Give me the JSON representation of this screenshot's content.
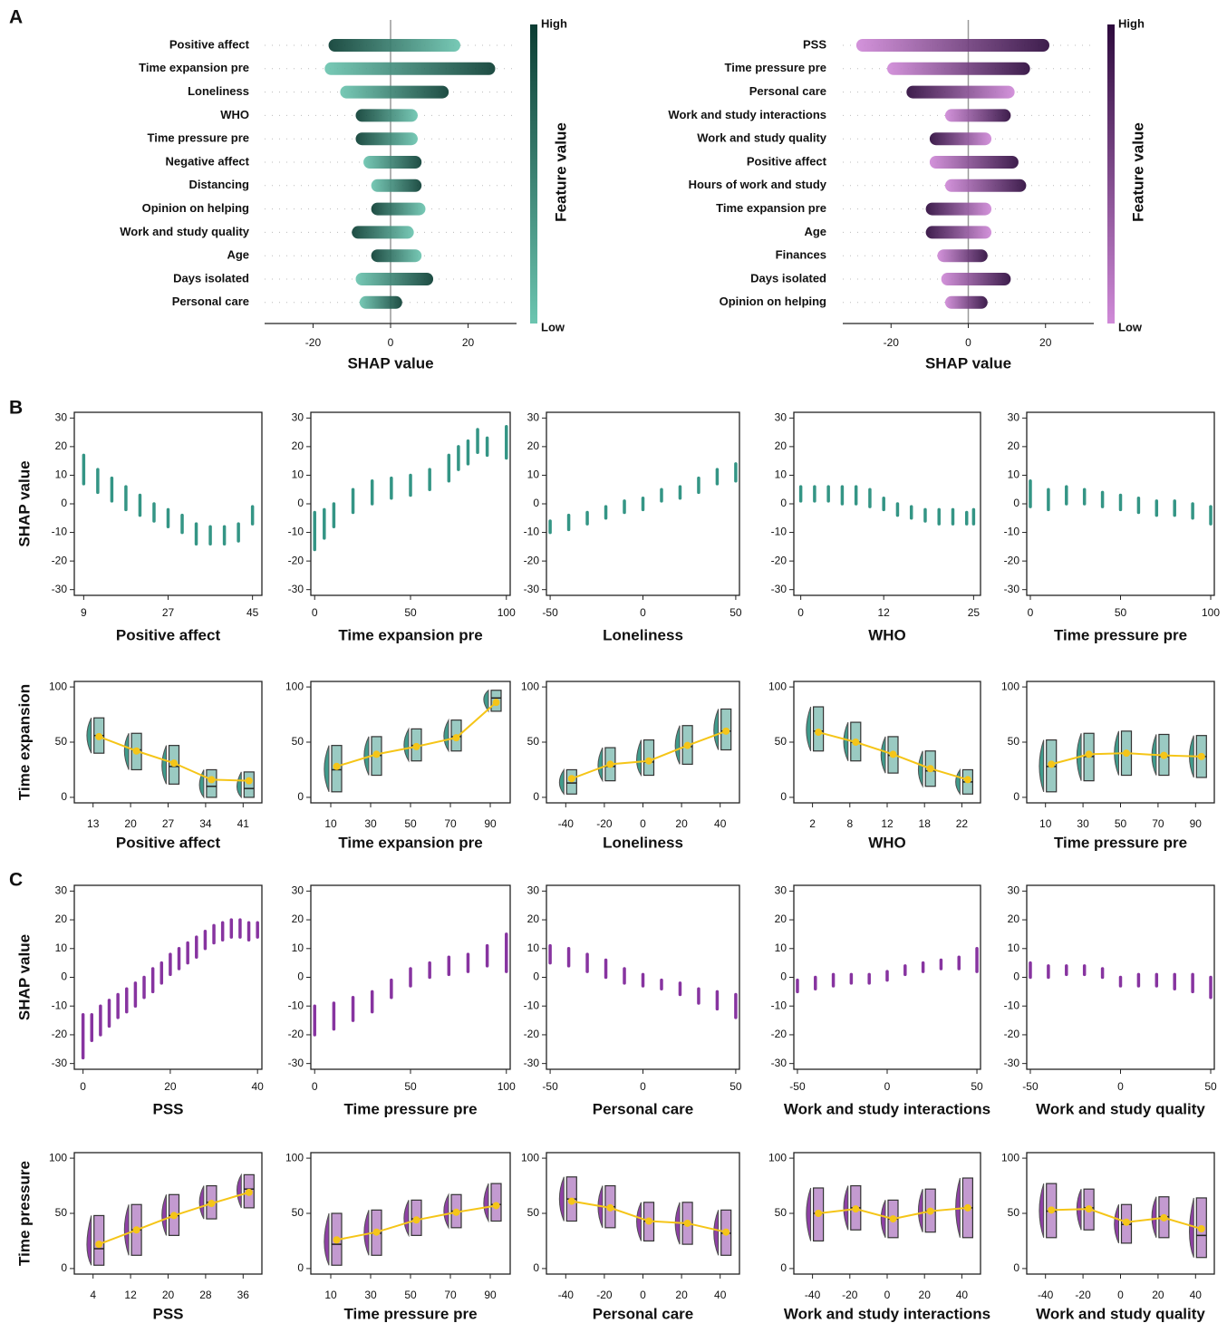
{
  "panel_labels": [
    "A",
    "B",
    "C"
  ],
  "chart_data": [
    {
      "type": "beeswarm",
      "xlabel": "SHAP value",
      "colorbar_label": "Feature value",
      "colorbar_high": "High",
      "colorbar_low": "Low",
      "low_color": "#6cc5b0",
      "high_color": "#0b3d33",
      "features": [
        "Positive affect",
        "Time expansion pre",
        "Loneliness",
        "WHO",
        "Time pressure pre",
        "Negative affect",
        "Distancing",
        "Opinion on helping",
        "Work and study quality",
        "Age",
        "Days isolated",
        "Personal care"
      ],
      "min": [
        -16,
        -17,
        -13,
        -9,
        -9,
        -7,
        -5,
        -5,
        -10,
        -5,
        -9,
        -8
      ],
      "max": [
        18,
        27,
        15,
        7,
        7,
        8,
        8,
        9,
        6,
        8,
        11,
        3
      ],
      "high_end": [
        "left",
        "right",
        "right",
        "left",
        "left",
        "right",
        "right",
        "left",
        "left",
        "left",
        "right",
        "right"
      ],
      "xlim": [
        -32.5,
        32.5
      ],
      "xticks": [
        -20,
        0,
        20
      ]
    },
    {
      "type": "beeswarm",
      "xlabel": "SHAP value",
      "colorbar_label": "Feature value",
      "colorbar_high": "High",
      "colorbar_low": "Low",
      "low_color": "#d08ad8",
      "high_color": "#2d0a3d",
      "features": [
        "PSS",
        "Time pressure pre",
        "Personal care",
        "Work and study interactions",
        "Work and study quality",
        "Positive affect",
        "Hours of work and study",
        "Time expansion pre",
        "Age",
        "Finances",
        "Days isolated",
        "Opinion on helping"
      ],
      "min": [
        -29,
        -21,
        -16,
        -6,
        -10,
        -10,
        -6,
        -11,
        -11,
        -8,
        -7,
        -6
      ],
      "max": [
        21,
        16,
        12,
        11,
        6,
        13,
        15,
        6,
        6,
        5,
        11,
        5
      ],
      "high_end": [
        "right",
        "right",
        "left",
        "right",
        "left",
        "right",
        "right",
        "left",
        "left",
        "right",
        "right",
        "right"
      ],
      "xlim": [
        -32.5,
        32.5
      ],
      "xticks": [
        -20,
        0,
        20
      ]
    },
    {
      "type": "strip",
      "xlabel": "Positive affect",
      "ylabel": "SHAP value",
      "color": "#1f8a78",
      "x": [
        9,
        12,
        15,
        18,
        21,
        24,
        27,
        30,
        33,
        36,
        39,
        42,
        45
      ],
      "low": [
        7,
        4,
        1,
        -2,
        -4,
        -6,
        -8,
        -10,
        -14,
        -14,
        -14,
        -13,
        -7
      ],
      "high": [
        17,
        12,
        9,
        6,
        3,
        0,
        -2,
        -4,
        -7,
        -8,
        -8,
        -7,
        -1
      ],
      "xlim": [
        7,
        47
      ],
      "xticks": [
        9,
        27,
        45
      ],
      "ylim": [
        -32,
        32
      ],
      "yticks": [
        -30,
        -20,
        -10,
        0,
        10,
        20,
        30
      ]
    },
    {
      "type": "strip",
      "xlabel": "Time expansion pre",
      "color": "#1f8a78",
      "x": [
        0,
        5,
        10,
        20,
        30,
        40,
        50,
        60,
        70,
        75,
        80,
        85,
        90,
        100
      ],
      "low": [
        -16,
        -12,
        -8,
        -3,
        0,
        2,
        3,
        5,
        8,
        12,
        14,
        18,
        17,
        16
      ],
      "high": [
        -3,
        -2,
        0,
        5,
        8,
        9,
        10,
        12,
        17,
        20,
        22,
        26,
        23,
        27
      ],
      "xlim": [
        -2,
        102
      ],
      "xticks": [
        0,
        50,
        100
      ],
      "ylim": [
        -32,
        32
      ],
      "yticks": [
        -30,
        -20,
        -10,
        0,
        10,
        20,
        30
      ]
    },
    {
      "type": "strip",
      "xlabel": "Loneliness",
      "color": "#1f8a78",
      "x": [
        -50,
        -40,
        -30,
        -20,
        -10,
        0,
        10,
        20,
        30,
        40,
        50
      ],
      "low": [
        -10,
        -9,
        -7,
        -5,
        -3,
        -2,
        1,
        2,
        4,
        7,
        8
      ],
      "high": [
        -6,
        -4,
        -3,
        -1,
        1,
        2,
        5,
        6,
        9,
        12,
        14
      ],
      "xlim": [
        -52,
        52
      ],
      "xticks": [
        -50,
        0,
        50
      ],
      "ylim": [
        -32,
        32
      ],
      "yticks": [
        -30,
        -20,
        -10,
        0,
        10,
        20,
        30
      ]
    },
    {
      "type": "strip",
      "xlabel": "WHO",
      "color": "#1f8a78",
      "x": [
        0,
        2,
        4,
        6,
        8,
        10,
        12,
        14,
        16,
        18,
        20,
        22,
        24,
        25
      ],
      "low": [
        1,
        1,
        1,
        0,
        0,
        -1,
        -2,
        -4,
        -5,
        -6,
        -7,
        -7,
        -7,
        -7
      ],
      "high": [
        6,
        6,
        6,
        6,
        6,
        5,
        2,
        0,
        -1,
        -2,
        -2,
        -2,
        -3,
        -2
      ],
      "xlim": [
        -1,
        26
      ],
      "xticks": [
        0,
        12,
        25
      ],
      "ylim": [
        -32,
        32
      ],
      "yticks": [
        -30,
        -20,
        -10,
        0,
        10,
        20,
        30
      ]
    },
    {
      "type": "strip",
      "xlabel": "Time pressure pre",
      "color": "#1f8a78",
      "x": [
        0,
        10,
        20,
        30,
        40,
        50,
        60,
        70,
        80,
        90,
        100
      ],
      "low": [
        -1,
        -2,
        0,
        0,
        -1,
        -2,
        -3,
        -4,
        -4,
        -5,
        -7
      ],
      "high": [
        8,
        5,
        6,
        5,
        4,
        3,
        2,
        1,
        1,
        0,
        -1
      ],
      "xlim": [
        -2,
        102
      ],
      "xticks": [
        0,
        50,
        100
      ],
      "ylim": [
        -32,
        32
      ],
      "yticks": [
        -30,
        -20,
        -10,
        0,
        10,
        20,
        30
      ]
    },
    {
      "type": "box",
      "xlabel": "Positive affect",
      "ylabel": "Time expansion",
      "color": "#1f8a78",
      "mean_color": "#f5c518",
      "categories": [
        "13",
        "20",
        "27",
        "34",
        "41"
      ],
      "q1": [
        40,
        25,
        12,
        0,
        0
      ],
      "median": [
        56,
        43,
        28,
        10,
        8
      ],
      "q3": [
        72,
        58,
        47,
        25,
        23
      ],
      "means": [
        55,
        42,
        31,
        16,
        15
      ],
      "ylim": [
        -5,
        105
      ],
      "yticks": [
        0,
        50,
        100
      ]
    },
    {
      "type": "box",
      "xlabel": "Time expansion pre",
      "color": "#1f8a78",
      "mean_color": "#f5c518",
      "categories": [
        "10",
        "30",
        "50",
        "70",
        "90"
      ],
      "q1": [
        5,
        20,
        33,
        42,
        78
      ],
      "median": [
        25,
        38,
        47,
        55,
        90
      ],
      "q3": [
        47,
        55,
        62,
        70,
        97
      ],
      "means": [
        28,
        39,
        46,
        54,
        86
      ],
      "ylim": [
        -5,
        105
      ],
      "yticks": [
        0,
        50,
        100
      ]
    },
    {
      "type": "box",
      "xlabel": "Loneliness",
      "color": "#1f8a78",
      "mean_color": "#f5c518",
      "categories": [
        "-40",
        "-20",
        "0",
        "20",
        "40"
      ],
      "q1": [
        3,
        15,
        20,
        30,
        43
      ],
      "median": [
        13,
        28,
        32,
        46,
        60
      ],
      "q3": [
        25,
        45,
        52,
        65,
        80
      ],
      "means": [
        17,
        30,
        33,
        47,
        60
      ],
      "ylim": [
        -5,
        105
      ],
      "yticks": [
        0,
        50,
        100
      ]
    },
    {
      "type": "box",
      "xlabel": "WHO",
      "color": "#1f8a78",
      "mean_color": "#f5c518",
      "categories": [
        "2",
        "8",
        "12",
        "18",
        "22"
      ],
      "q1": [
        42,
        33,
        22,
        10,
        3
      ],
      "median": [
        60,
        50,
        38,
        24,
        14
      ],
      "q3": [
        82,
        68,
        55,
        42,
        25
      ],
      "means": [
        59,
        50,
        39,
        26,
        16
      ],
      "ylim": [
        -5,
        105
      ],
      "yticks": [
        0,
        50,
        100
      ]
    },
    {
      "type": "box",
      "xlabel": "Time pressure pre",
      "color": "#1f8a78",
      "mean_color": "#f5c518",
      "categories": [
        "10",
        "30",
        "50",
        "70",
        "90"
      ],
      "q1": [
        5,
        15,
        20,
        20,
        18
      ],
      "median": [
        28,
        37,
        40,
        37,
        37
      ],
      "q3": [
        52,
        58,
        60,
        57,
        56
      ],
      "means": [
        30,
        39,
        40,
        38,
        37
      ],
      "ylim": [
        -5,
        105
      ],
      "yticks": [
        0,
        50,
        100
      ]
    },
    {
      "type": "strip",
      "xlabel": "PSS",
      "ylabel": "SHAP value",
      "color": "#7b1f96",
      "x": [
        0,
        2,
        4,
        6,
        8,
        10,
        12,
        14,
        16,
        18,
        20,
        22,
        24,
        26,
        28,
        30,
        32,
        34,
        36,
        38,
        40
      ],
      "low": [
        -28,
        -22,
        -20,
        -17,
        -14,
        -12,
        -10,
        -7,
        -5,
        -2,
        1,
        3,
        5,
        7,
        10,
        12,
        13,
        14,
        14,
        13,
        14
      ],
      "high": [
        -13,
        -13,
        -10,
        -8,
        -6,
        -4,
        -2,
        0,
        3,
        5,
        8,
        10,
        12,
        14,
        16,
        18,
        19,
        20,
        20,
        19,
        19
      ],
      "xlim": [
        -2,
        41
      ],
      "xticks": [
        0,
        20,
        40
      ],
      "ylim": [
        -32,
        32
      ],
      "yticks": [
        -30,
        -20,
        -10,
        0,
        10,
        20,
        30
      ]
    },
    {
      "type": "strip",
      "xlabel": "Time pressure pre",
      "color": "#7b1f96",
      "x": [
        0,
        10,
        20,
        30,
        40,
        50,
        60,
        70,
        80,
        90,
        100
      ],
      "low": [
        -20,
        -18,
        -15,
        -12,
        -7,
        -3,
        0,
        1,
        2,
        4,
        2
      ],
      "high": [
        -10,
        -9,
        -7,
        -5,
        -1,
        3,
        5,
        7,
        8,
        11,
        15
      ],
      "xlim": [
        -2,
        102
      ],
      "xticks": [
        0,
        50,
        100
      ],
      "ylim": [
        -32,
        32
      ],
      "yticks": [
        -30,
        -20,
        -10,
        0,
        10,
        20,
        30
      ]
    },
    {
      "type": "strip",
      "xlabel": "Personal care",
      "color": "#7b1f96",
      "x": [
        -50,
        -40,
        -30,
        -20,
        -10,
        0,
        10,
        20,
        30,
        40,
        50
      ],
      "low": [
        5,
        4,
        2,
        0,
        -2,
        -3,
        -4,
        -6,
        -9,
        -11,
        -14
      ],
      "high": [
        11,
        10,
        8,
        6,
        3,
        1,
        -1,
        -2,
        -4,
        -5,
        -6
      ],
      "xlim": [
        -52,
        52
      ],
      "xticks": [
        -50,
        0,
        50
      ],
      "ylim": [
        -32,
        32
      ],
      "yticks": [
        -30,
        -20,
        -10,
        0,
        10,
        20,
        30
      ]
    },
    {
      "type": "strip",
      "xlabel": "Work and study interactions",
      "color": "#7b1f96",
      "x": [
        -50,
        -40,
        -30,
        -20,
        -10,
        0,
        10,
        20,
        30,
        40,
        50
      ],
      "low": [
        -5,
        -4,
        -3,
        -2,
        -2,
        -1,
        1,
        2,
        3,
        3,
        2
      ],
      "high": [
        -1,
        0,
        1,
        1,
        1,
        2,
        4,
        5,
        6,
        7,
        10
      ],
      "xlim": [
        -52,
        52
      ],
      "xticks": [
        -50,
        0,
        50
      ],
      "ylim": [
        -32,
        32
      ],
      "yticks": [
        -30,
        -20,
        -10,
        0,
        10,
        20,
        30
      ]
    },
    {
      "type": "strip",
      "xlabel": "Work and study quality",
      "color": "#7b1f96",
      "x": [
        -50,
        -40,
        -30,
        -20,
        -10,
        0,
        10,
        20,
        30,
        40,
        50
      ],
      "low": [
        0,
        0,
        1,
        1,
        0,
        -3,
        -3,
        -3,
        -4,
        -5,
        -7
      ],
      "high": [
        5,
        4,
        4,
        4,
        3,
        0,
        1,
        1,
        1,
        1,
        0
      ],
      "xlim": [
        -52,
        52
      ],
      "xticks": [
        -50,
        0,
        50
      ],
      "ylim": [
        -32,
        32
      ],
      "yticks": [
        -30,
        -20,
        -10,
        0,
        10,
        20,
        30
      ]
    },
    {
      "type": "box",
      "xlabel": "PSS",
      "ylabel": "Time pressure",
      "color": "#7b1f96",
      "mean_color": "#f5c518",
      "categories": [
        "4",
        "12",
        "20",
        "28",
        "36"
      ],
      "q1": [
        3,
        12,
        30,
        45,
        55
      ],
      "median": [
        18,
        35,
        48,
        60,
        72
      ],
      "q3": [
        48,
        58,
        67,
        75,
        85
      ],
      "means": [
        22,
        35,
        48,
        59,
        69
      ],
      "ylim": [
        -5,
        105
      ],
      "yticks": [
        0,
        50,
        100
      ]
    },
    {
      "type": "box",
      "xlabel": "Time pressure pre",
      "color": "#7b1f96",
      "mean_color": "#f5c518",
      "categories": [
        "10",
        "30",
        "50",
        "70",
        "90"
      ],
      "q1": [
        3,
        12,
        30,
        37,
        43
      ],
      "median": [
        22,
        32,
        45,
        52,
        58
      ],
      "q3": [
        50,
        53,
        62,
        67,
        77
      ],
      "means": [
        26,
        33,
        44,
        51,
        57
      ],
      "ylim": [
        -5,
        105
      ],
      "yticks": [
        0,
        50,
        100
      ]
    },
    {
      "type": "box",
      "xlabel": "Personal care",
      "color": "#7b1f96",
      "mean_color": "#f5c518",
      "categories": [
        "-40",
        "-20",
        "0",
        "20",
        "40"
      ],
      "q1": [
        43,
        37,
        25,
        22,
        12
      ],
      "median": [
        63,
        56,
        43,
        40,
        32
      ],
      "q3": [
        83,
        75,
        60,
        60,
        53
      ],
      "means": [
        61,
        55,
        43,
        41,
        33
      ],
      "ylim": [
        -5,
        105
      ],
      "yticks": [
        0,
        50,
        100
      ]
    },
    {
      "type": "box",
      "xlabel": "Work and study interactions",
      "color": "#7b1f96",
      "mean_color": "#f5c518",
      "categories": [
        "-40",
        "-20",
        "0",
        "20",
        "40"
      ],
      "q1": [
        25,
        35,
        28,
        33,
        28
      ],
      "median": [
        50,
        55,
        45,
        52,
        55
      ],
      "q3": [
        73,
        75,
        62,
        72,
        82
      ],
      "means": [
        50,
        54,
        45,
        52,
        55
      ],
      "ylim": [
        -5,
        105
      ],
      "yticks": [
        0,
        50,
        100
      ]
    },
    {
      "type": "box",
      "xlabel": "Work and study quality",
      "color": "#7b1f96",
      "mean_color": "#f5c518",
      "categories": [
        "-40",
        "-20",
        "0",
        "20",
        "40"
      ],
      "q1": [
        28,
        35,
        23,
        28,
        10
      ],
      "median": [
        52,
        55,
        40,
        47,
        30
      ],
      "q3": [
        77,
        72,
        58,
        65,
        64
      ],
      "means": [
        53,
        54,
        42,
        46,
        36
      ],
      "ylim": [
        -5,
        105
      ],
      "yticks": [
        0,
        50,
        100
      ]
    }
  ]
}
